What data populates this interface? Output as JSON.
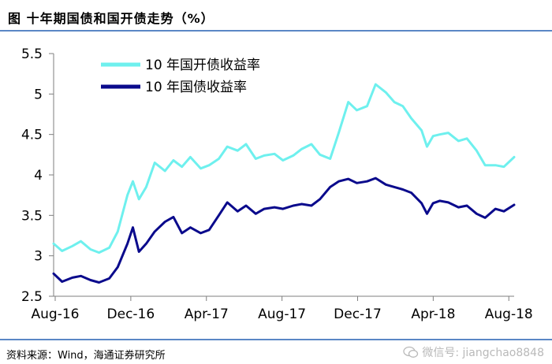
{
  "title": "图    十年期国债和国开债走势（%）",
  "source": "资料来源：Wind，海通证券研究所",
  "watermark": "微信号: jiangchao8848",
  "chart_data": {
    "type": "line",
    "xlabel": "",
    "ylabel": "",
    "ylim": [
      2.5,
      5.5
    ],
    "yticks": [
      "2.5",
      "3",
      "3.5",
      "4",
      "4.5",
      "5",
      "5.5"
    ],
    "xticks": [
      "Aug-16",
      "Dec-16",
      "Apr-17",
      "Aug-17",
      "Dec-17",
      "Apr-18",
      "Aug-18"
    ],
    "xrange": [
      "2016-08",
      "2018-09"
    ],
    "grid": false,
    "legend_position": "top-left",
    "series": [
      {
        "name": "10 年国开债收益率",
        "color": "#6ef0ee",
        "points": [
          [
            "2016-08",
            3.15
          ],
          [
            "2016-08-15",
            3.06
          ],
          [
            "2016-09",
            3.12
          ],
          [
            "2016-09-15",
            3.18
          ],
          [
            "2016-10",
            3.08
          ],
          [
            "2016-10-15",
            3.04
          ],
          [
            "2016-11",
            3.1
          ],
          [
            "2016-11-15",
            3.3
          ],
          [
            "2016-12",
            3.75
          ],
          [
            "2016-12-10",
            3.92
          ],
          [
            "2016-12-20",
            3.7
          ],
          [
            "2017-01",
            3.85
          ],
          [
            "2017-01-15",
            4.15
          ],
          [
            "2017-02",
            4.05
          ],
          [
            "2017-02-15",
            4.18
          ],
          [
            "2017-03",
            4.1
          ],
          [
            "2017-03-15",
            4.22
          ],
          [
            "2017-04",
            4.08
          ],
          [
            "2017-04-15",
            4.12
          ],
          [
            "2017-05",
            4.2
          ],
          [
            "2017-05-15",
            4.35
          ],
          [
            "2017-06",
            4.3
          ],
          [
            "2017-06-15",
            4.38
          ],
          [
            "2017-07",
            4.2
          ],
          [
            "2017-07-15",
            4.24
          ],
          [
            "2017-08",
            4.26
          ],
          [
            "2017-08-15",
            4.18
          ],
          [
            "2017-09",
            4.24
          ],
          [
            "2017-09-15",
            4.32
          ],
          [
            "2017-10",
            4.38
          ],
          [
            "2017-10-15",
            4.25
          ],
          [
            "2017-11",
            4.2
          ],
          [
            "2017-11-15",
            4.52
          ],
          [
            "2017-12",
            4.9
          ],
          [
            "2017-12-15",
            4.8
          ],
          [
            "2018-01",
            4.85
          ],
          [
            "2018-01-15",
            5.12
          ],
          [
            "2018-02",
            5.02
          ],
          [
            "2018-02-15",
            4.9
          ],
          [
            "2018-03",
            4.85
          ],
          [
            "2018-03-15",
            4.7
          ],
          [
            "2018-04",
            4.55
          ],
          [
            "2018-04-10",
            4.35
          ],
          [
            "2018-04-20",
            4.48
          ],
          [
            "2018-05",
            4.5
          ],
          [
            "2018-05-15",
            4.52
          ],
          [
            "2018-06",
            4.42
          ],
          [
            "2018-06-15",
            4.45
          ],
          [
            "2018-07",
            4.3
          ],
          [
            "2018-07-15",
            4.12
          ],
          [
            "2018-08",
            4.12
          ],
          [
            "2018-08-15",
            4.1
          ],
          [
            "2018-09",
            4.22
          ]
        ]
      },
      {
        "name": "10 年国债收益率",
        "color": "#0a0a8c",
        "points": [
          [
            "2016-08",
            2.78
          ],
          [
            "2016-08-15",
            2.68
          ],
          [
            "2016-09",
            2.73
          ],
          [
            "2016-09-15",
            2.75
          ],
          [
            "2016-10",
            2.7
          ],
          [
            "2016-10-15",
            2.67
          ],
          [
            "2016-11",
            2.72
          ],
          [
            "2016-11-15",
            2.86
          ],
          [
            "2016-12",
            3.15
          ],
          [
            "2016-12-10",
            3.35
          ],
          [
            "2016-12-20",
            3.05
          ],
          [
            "2017-01",
            3.15
          ],
          [
            "2017-01-15",
            3.3
          ],
          [
            "2017-02",
            3.42
          ],
          [
            "2017-02-15",
            3.48
          ],
          [
            "2017-03",
            3.28
          ],
          [
            "2017-03-15",
            3.35
          ],
          [
            "2017-04",
            3.28
          ],
          [
            "2017-04-15",
            3.32
          ],
          [
            "2017-05",
            3.5
          ],
          [
            "2017-05-15",
            3.66
          ],
          [
            "2017-06",
            3.55
          ],
          [
            "2017-06-15",
            3.62
          ],
          [
            "2017-07",
            3.52
          ],
          [
            "2017-07-15",
            3.58
          ],
          [
            "2017-08",
            3.6
          ],
          [
            "2017-08-15",
            3.58
          ],
          [
            "2017-09",
            3.62
          ],
          [
            "2017-09-15",
            3.64
          ],
          [
            "2017-10",
            3.62
          ],
          [
            "2017-10-15",
            3.7
          ],
          [
            "2017-11",
            3.85
          ],
          [
            "2017-11-15",
            3.92
          ],
          [
            "2017-12",
            3.95
          ],
          [
            "2017-12-15",
            3.9
          ],
          [
            "2018-01",
            3.92
          ],
          [
            "2018-01-15",
            3.96
          ],
          [
            "2018-02",
            3.88
          ],
          [
            "2018-02-15",
            3.85
          ],
          [
            "2018-03",
            3.82
          ],
          [
            "2018-03-15",
            3.78
          ],
          [
            "2018-04",
            3.65
          ],
          [
            "2018-04-10",
            3.52
          ],
          [
            "2018-04-20",
            3.65
          ],
          [
            "2018-05",
            3.68
          ],
          [
            "2018-05-15",
            3.66
          ],
          [
            "2018-06",
            3.6
          ],
          [
            "2018-06-15",
            3.62
          ],
          [
            "2018-07",
            3.52
          ],
          [
            "2018-07-15",
            3.47
          ],
          [
            "2018-08",
            3.58
          ],
          [
            "2018-08-15",
            3.55
          ],
          [
            "2018-09",
            3.63
          ]
        ]
      }
    ]
  }
}
